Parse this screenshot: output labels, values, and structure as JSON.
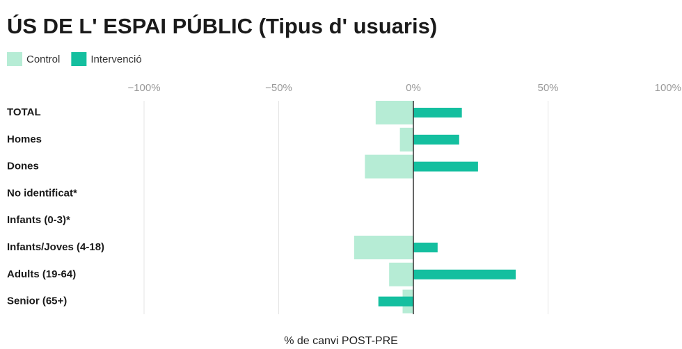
{
  "chart_data": {
    "type": "bar",
    "orientation": "horizontal",
    "title": "ÚS DE L' ESPAI PÚBLIC (Tipus d' usuaris)",
    "x_label": "% de canvi POST-PRE",
    "categories": [
      "TOTAL",
      "Homes",
      "Dones",
      "No identificat*",
      "Infants (0-3)*",
      "Infants/Joves (4-18)",
      "Adults (19-64)",
      "Senior (65+)"
    ],
    "series": [
      {
        "name": "Control",
        "color": "#b6ecd5",
        "values": [
          -14,
          -5,
          -18,
          null,
          null,
          -22,
          -9,
          -4
        ]
      },
      {
        "name": "Intervenció",
        "color": "#14bf9f",
        "values": [
          18,
          17,
          24,
          null,
          null,
          9,
          38,
          -13
        ]
      }
    ],
    "xlim": [
      -100,
      100
    ],
    "xticks": [
      {
        "value": -100,
        "label": "−100%"
      },
      {
        "value": -50,
        "label": "−50%"
      },
      {
        "value": 0,
        "label": "0%"
      },
      {
        "value": 50,
        "label": "50%"
      },
      {
        "value": 100,
        "label": "100%"
      }
    ],
    "grid": true
  }
}
